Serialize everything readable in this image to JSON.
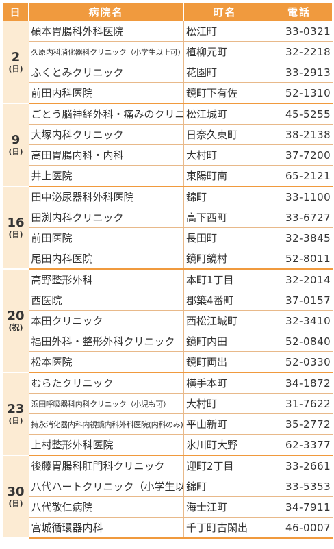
{
  "headers": {
    "day": "日",
    "name": "病院名",
    "town": "町名",
    "tel": "電話"
  },
  "groups": [
    {
      "day": "2",
      "weekday": "(日)",
      "rows": [
        {
          "name": "碩本胃腸科外科医院",
          "town": "松江町",
          "tel": "33-0321"
        },
        {
          "name": "久原内科消化器科クリニック（小学生以上可）",
          "town": "植柳元町",
          "tel": "32-2218"
        },
        {
          "name": "ふくとみクリニック",
          "town": "花園町",
          "tel": "33-2913"
        },
        {
          "name": "前田内科医院",
          "town": "鏡町下有佐",
          "tel": "52-1310"
        }
      ]
    },
    {
      "day": "9",
      "weekday": "(日)",
      "rows": [
        {
          "name": "ごとう脳神経外科・痛みのクリニック",
          "town": "松江城町",
          "tel": "45-5255"
        },
        {
          "name": "大塚内科クリニック",
          "town": "日奈久東町",
          "tel": "38-2138"
        },
        {
          "name": "高田胃腸内科・内科",
          "town": "大村町",
          "tel": "37-7200"
        },
        {
          "name": "井上医院",
          "town": "東陽町南",
          "tel": "65-2121"
        }
      ]
    },
    {
      "day": "16",
      "weekday": "(日)",
      "rows": [
        {
          "name": "田中泌尿器科外科医院",
          "town": "錦町",
          "tel": "33-1100"
        },
        {
          "name": "田渕内科クリニック",
          "town": "高下西町",
          "tel": "33-6727"
        },
        {
          "name": "前田医院",
          "town": "長田町",
          "tel": "32-3845"
        },
        {
          "name": "尾田内科医院",
          "town": "鏡町鏡村",
          "tel": "52-8011"
        }
      ]
    },
    {
      "day": "20",
      "weekday": "(祝)",
      "rows": [
        {
          "name": "高野整形外科",
          "town": "本町1丁目",
          "tel": "32-2014"
        },
        {
          "name": "西医院",
          "town": "郡築4番町",
          "tel": "37-0157"
        },
        {
          "name": "本田クリニック",
          "town": "西松江城町",
          "tel": "32-3410"
        },
        {
          "name": "福田外科・整形外科クリニック",
          "town": "鏡町内田",
          "tel": "52-0840"
        },
        {
          "name": "松本医院",
          "town": "鏡町両出",
          "tel": "52-0330"
        }
      ]
    },
    {
      "day": "23",
      "weekday": "(日)",
      "rows": [
        {
          "name": "むらたクリニック",
          "town": "横手本町",
          "tel": "34-1872"
        },
        {
          "name": "浜田呼吸器科内科クリニック（小児も可）",
          "town": "大村町",
          "tel": "31-7622"
        },
        {
          "name": "持永消化器内科内視鏡内科外科医院(内科のみ)",
          "town": "平山新町",
          "tel": "35-2772"
        },
        {
          "name": "上村整形外科医院",
          "town": "氷川町大野",
          "tel": "62-3377"
        }
      ]
    },
    {
      "day": "30",
      "weekday": "(日)",
      "rows": [
        {
          "name": "後藤胃腸科肛門科クリニック",
          "town": "迎町2丁目",
          "tel": "33-2661"
        },
        {
          "name": "八代ハートクリニック（小学生以上可）",
          "town": "錦町",
          "tel": "33-5353"
        },
        {
          "name": "八代敬仁病院",
          "town": "海士江町",
          "tel": "34-7911"
        },
        {
          "name": "宮城循環器内科",
          "town": "千丁町古閑出",
          "tel": "46-0007"
        }
      ]
    }
  ]
}
